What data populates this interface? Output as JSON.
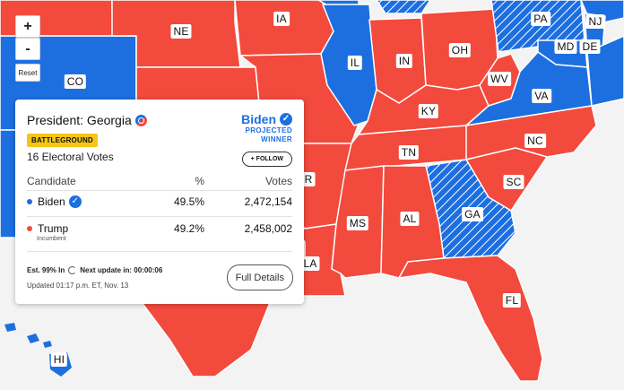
{
  "map": {
    "colors": {
      "republican": "#f24a3d",
      "democrat": "#1d6fe0",
      "background": "#f3f3f3"
    },
    "state_labels": {
      "co": "CO",
      "ne": "NE",
      "ia": "IA",
      "il": "IL",
      "in": "IN",
      "oh": "OH",
      "pa": "PA",
      "nj": "NJ",
      "md": "MD",
      "de": "DE",
      "wv": "WV",
      "va": "VA",
      "ky": "KY",
      "tn": "TN",
      "nc": "NC",
      "sc": "SC",
      "ga": "GA",
      "al": "AL",
      "ms": "MS",
      "fl": "FL",
      "hi": "HI",
      "ar_partial": "R",
      "la_partial": "LA"
    }
  },
  "controls": {
    "zoom_in": "+",
    "zoom_out": "-",
    "reset": "Reset"
  },
  "race": {
    "title": "President: Georgia",
    "badge": "BATTLEGROUND",
    "electoral_votes": "16 Electoral Votes",
    "winner_name": "Biden",
    "winner_status_line1": "PROJECTED",
    "winner_status_line2": "WINNER",
    "follow_label": "+ FOLLOW",
    "columns": {
      "candidate": "Candidate",
      "percent": "%",
      "votes": "Votes"
    },
    "candidates": [
      {
        "name": "Biden",
        "percent": "49.5%",
        "votes": "2,472,154",
        "color": "#1d6fe0",
        "winner": true
      },
      {
        "name": "Trump",
        "note": "Incumbent",
        "percent": "49.2%",
        "votes": "2,458,002",
        "color": "#f24a3d",
        "winner": false
      }
    ],
    "estimate": "Est. 99% In",
    "next_update": "Next update in: 00:00:06",
    "updated": "Updated 01:17 p.m. ET, Nov. 13",
    "details_label": "Full Details"
  }
}
